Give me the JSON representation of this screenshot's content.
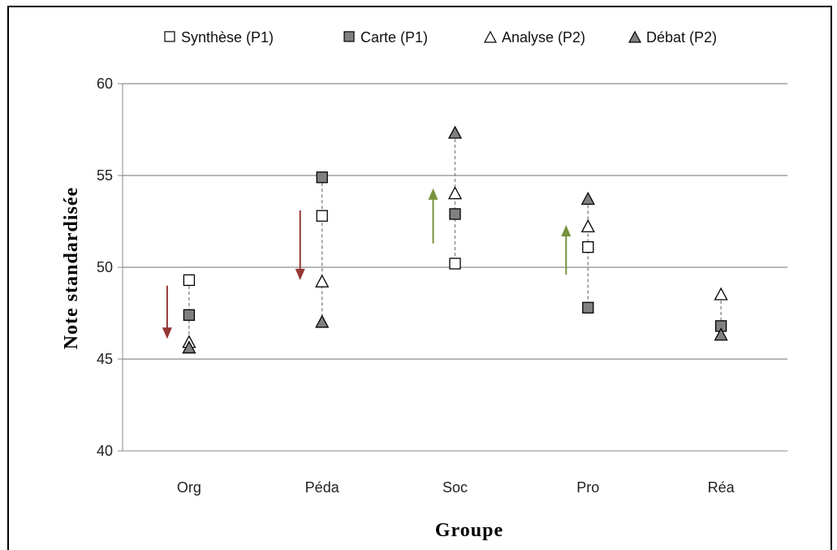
{
  "chart_data": {
    "type": "scatter",
    "title": "",
    "xlabel": "Groupe",
    "ylabel": "Note standardisée",
    "categories": [
      "Org",
      "Péda",
      "Soc",
      "Pro",
      "Réa"
    ],
    "ylim": [
      40,
      60
    ],
    "yticks": [
      40,
      45,
      50,
      55,
      60
    ],
    "grid": true,
    "legend_position": "top",
    "series": [
      {
        "name": "Synthèse (P1)",
        "marker": "square",
        "fill": "#ffffff",
        "values": [
          49.3,
          52.8,
          50.2,
          51.1,
          null
        ]
      },
      {
        "name": "Carte (P1)",
        "marker": "square",
        "fill": "#808080",
        "values": [
          47.4,
          54.9,
          52.9,
          47.8,
          46.8
        ]
      },
      {
        "name": "Analyse (P2)",
        "marker": "triangle",
        "fill": "#ffffff",
        "values": [
          45.9,
          49.2,
          54.0,
          52.2,
          48.5
        ]
      },
      {
        "name": "Débat (P2)",
        "marker": "triangle",
        "fill": "#808080",
        "values": [
          45.6,
          47.0,
          57.3,
          53.7,
          46.3
        ]
      }
    ],
    "range_lines": [
      {
        "category": "Org",
        "from": 45.6,
        "to": 49.3
      },
      {
        "category": "Péda",
        "from": 47.0,
        "to": 54.9
      },
      {
        "category": "Soc",
        "from": 50.2,
        "to": 57.3
      },
      {
        "category": "Pro",
        "from": 47.8,
        "to": 53.7
      },
      {
        "category": "Réa",
        "from": 46.3,
        "to": 48.5
      }
    ],
    "trend_arrows": [
      {
        "category": "Org",
        "direction": "down",
        "from": 49.0,
        "to": 46.1,
        "color": "#953735"
      },
      {
        "category": "Péda",
        "direction": "down",
        "from": 53.1,
        "to": 49.3,
        "color": "#953735"
      },
      {
        "category": "Soc",
        "direction": "up",
        "from": 51.3,
        "to": 54.3,
        "color": "#77933c"
      },
      {
        "category": "Pro",
        "direction": "up",
        "from": 49.6,
        "to": 52.3,
        "color": "#77933c"
      }
    ]
  }
}
